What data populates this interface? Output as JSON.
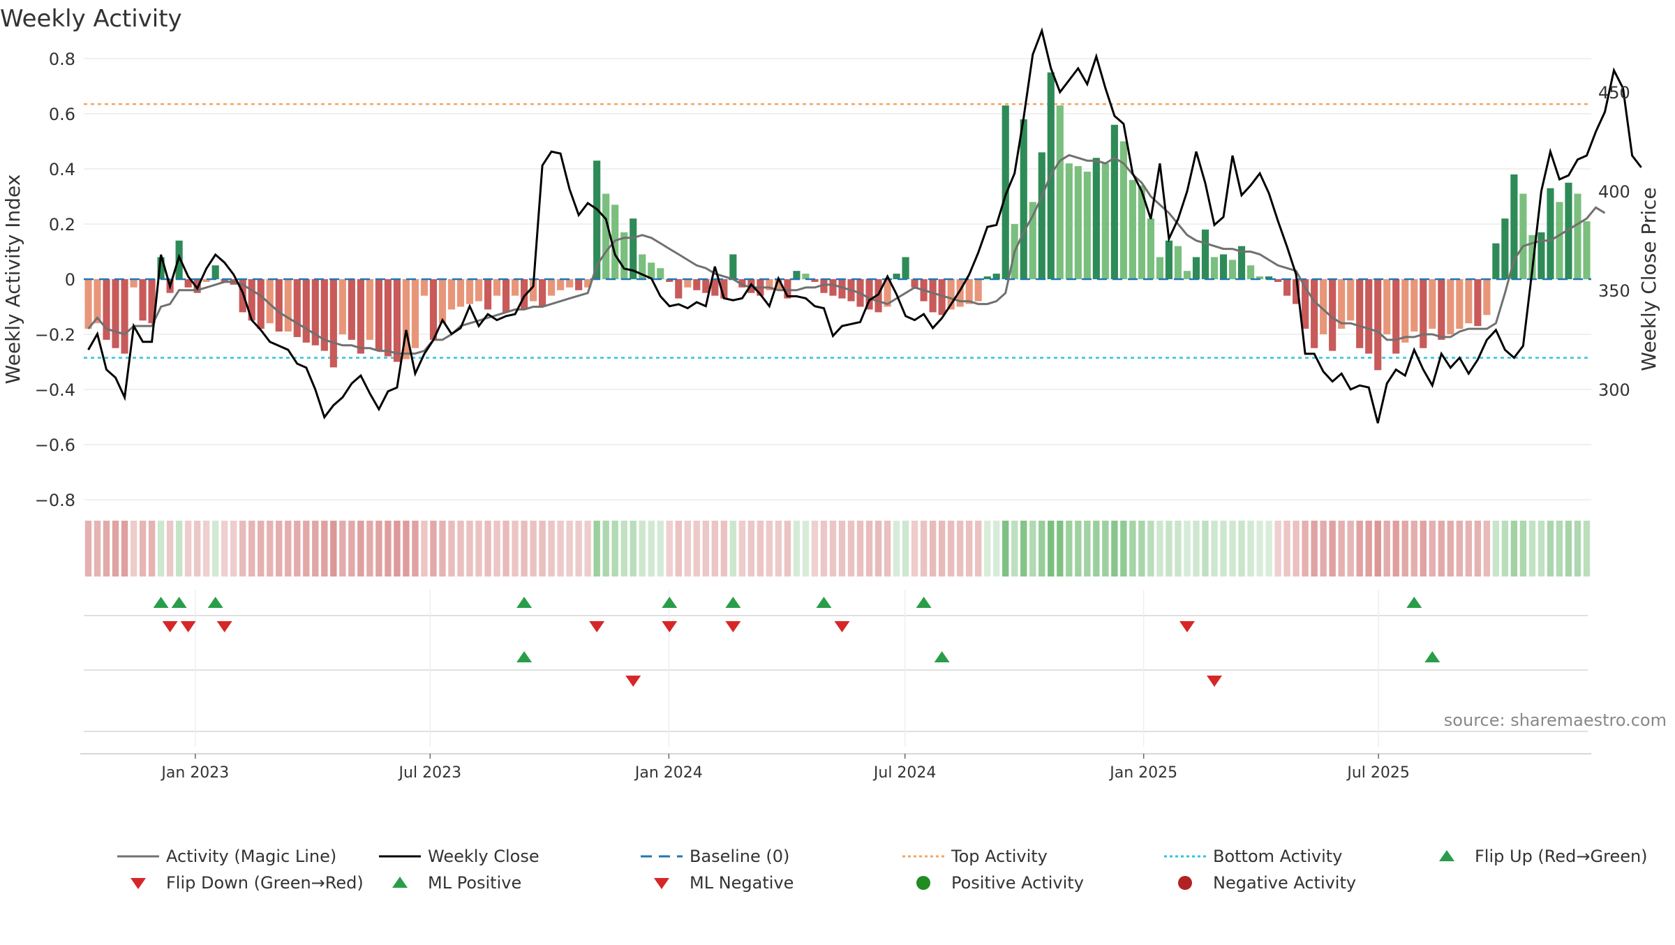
{
  "chart_data": {
    "type": "bar",
    "title": "Weekly Activity",
    "ylabel": "Weekly Activity Index",
    "y2label": "Weekly Close Price",
    "ylim": [
      -0.85,
      0.82
    ],
    "y2lim": [
      268,
      486
    ],
    "yticks": [
      0.8,
      0.6,
      0.4,
      0.2,
      0,
      -0.2,
      -0.4,
      -0.6,
      -0.8
    ],
    "ytick_labels": [
      "0.8",
      "0.6",
      "0.4",
      "0.2",
      "0",
      "−0.2",
      "−0.4",
      "−0.6",
      "−0.8"
    ],
    "y2ticks": [
      300,
      350,
      400,
      450
    ],
    "y2tick_labels": [
      "300",
      "350",
      "400",
      "450"
    ],
    "start_date": "2022-10-07",
    "x_dates": [
      "2023-01-01",
      "2023-07-01",
      "2024-01-01",
      "2024-07-01",
      "2025-01-01",
      "2025-07-01"
    ],
    "xtick_labels": [
      "Jan 2023",
      "Jul 2023",
      "Jan 2024",
      "Jul 2024",
      "Jan 2025",
      "Jul 2025"
    ],
    "top_activity": 0.635,
    "bottom_activity": -0.285,
    "baseline": 0,
    "grid": true,
    "source": "source: sharemaestro.com",
    "activity": [
      -0.18,
      -0.16,
      -0.22,
      -0.25,
      -0.27,
      -0.03,
      -0.15,
      -0.16,
      0.08,
      -0.05,
      0.14,
      -0.03,
      -0.05,
      -0.01,
      0.05,
      -0.01,
      -0.02,
      -0.12,
      -0.15,
      -0.18,
      -0.16,
      -0.19,
      -0.19,
      -0.21,
      -0.23,
      -0.24,
      -0.26,
      -0.32,
      -0.2,
      -0.22,
      -0.27,
      -0.22,
      -0.26,
      -0.28,
      -0.3,
      -0.29,
      -0.25,
      -0.06,
      -0.22,
      -0.16,
      -0.11,
      -0.1,
      -0.09,
      -0.08,
      -0.11,
      -0.06,
      -0.12,
      -0.06,
      -0.11,
      -0.08,
      -0.1,
      -0.06,
      -0.04,
      -0.03,
      -0.04,
      -0.03,
      0.43,
      0.31,
      0.27,
      0.17,
      0.22,
      0.09,
      0.06,
      0.04,
      -0.01,
      -0.07,
      -0.03,
      -0.04,
      -0.05,
      -0.06,
      -0.07,
      0.09,
      -0.03,
      -0.05,
      -0.06,
      -0.04,
      -0.04,
      -0.07,
      0.03,
      0.02,
      -0.01,
      -0.05,
      -0.06,
      -0.07,
      -0.08,
      -0.1,
      -0.11,
      -0.12,
      -0.1,
      0.02,
      0.08,
      -0.03,
      -0.08,
      -0.12,
      -0.13,
      -0.11,
      -0.1,
      -0.09,
      -0.08,
      0.01,
      0.02,
      0.63,
      0.2,
      0.58,
      0.28,
      0.46,
      0.75,
      0.63,
      0.42,
      0.41,
      0.39,
      0.44,
      0.42,
      0.56,
      0.5,
      0.36,
      0.34,
      0.22,
      0.08,
      0.14,
      0.12,
      0.03,
      0.08,
      0.18,
      0.08,
      0.09,
      0.07,
      0.12,
      0.05,
      0.01,
      0.01,
      -0.01,
      -0.06,
      -0.09,
      -0.18,
      -0.25,
      -0.2,
      -0.26,
      -0.18,
      -0.15,
      -0.25,
      -0.27,
      -0.33,
      -0.2,
      -0.27,
      -0.23,
      -0.19,
      -0.25,
      -0.18,
      -0.22,
      -0.2,
      -0.18,
      -0.16,
      -0.17,
      -0.13,
      0.13,
      0.22,
      0.38,
      0.31,
      0.16,
      0.17,
      0.33,
      0.28,
      0.35,
      0.31,
      0.21
    ],
    "magic_line": [
      -0.18,
      -0.14,
      -0.18,
      -0.19,
      -0.2,
      -0.17,
      -0.17,
      -0.17,
      -0.1,
      -0.09,
      -0.04,
      -0.04,
      -0.04,
      -0.03,
      -0.02,
      -0.01,
      -0.01,
      -0.02,
      -0.04,
      -0.06,
      -0.09,
      -0.12,
      -0.14,
      -0.16,
      -0.18,
      -0.2,
      -0.22,
      -0.23,
      -0.24,
      -0.24,
      -0.25,
      -0.25,
      -0.26,
      -0.26,
      -0.27,
      -0.27,
      -0.27,
      -0.26,
      -0.22,
      -0.22,
      -0.2,
      -0.17,
      -0.16,
      -0.15,
      -0.14,
      -0.13,
      -0.12,
      -0.11,
      -0.11,
      -0.1,
      -0.1,
      -0.09,
      -0.08,
      -0.07,
      -0.06,
      -0.05,
      0.05,
      0.1,
      0.14,
      0.15,
      0.15,
      0.16,
      0.15,
      0.13,
      0.11,
      0.09,
      0.07,
      0.05,
      0.04,
      0.02,
      0.01,
      0.0,
      -0.02,
      -0.03,
      -0.03,
      -0.03,
      -0.04,
      -0.04,
      -0.04,
      -0.03,
      -0.03,
      -0.02,
      -0.02,
      -0.03,
      -0.04,
      -0.05,
      -0.07,
      -0.08,
      -0.09,
      -0.07,
      -0.05,
      -0.03,
      -0.04,
      -0.05,
      -0.06,
      -0.07,
      -0.08,
      -0.08,
      -0.09,
      -0.09,
      -0.08,
      -0.05,
      0.1,
      0.17,
      0.23,
      0.3,
      0.38,
      0.43,
      0.45,
      0.44,
      0.43,
      0.43,
      0.42,
      0.44,
      0.42,
      0.38,
      0.35,
      0.3,
      0.27,
      0.24,
      0.2,
      0.16,
      0.14,
      0.13,
      0.12,
      0.11,
      0.11,
      0.1,
      0.1,
      0.09,
      0.07,
      0.05,
      0.04,
      0.03,
      -0.03,
      -0.08,
      -0.11,
      -0.14,
      -0.16,
      -0.16,
      -0.17,
      -0.18,
      -0.19,
      -0.22,
      -0.22,
      -0.21,
      -0.21,
      -0.2,
      -0.2,
      -0.21,
      -0.21,
      -0.19,
      -0.18,
      -0.18,
      -0.18,
      -0.16,
      -0.05,
      0.07,
      0.12,
      0.13,
      0.14,
      0.14,
      0.16,
      0.18,
      0.2,
      0.22,
      0.26,
      0.24
    ],
    "weekly_close": [
      320,
      328,
      310,
      306,
      296,
      332,
      324,
      324,
      368,
      352,
      367,
      357,
      351,
      361,
      368,
      364,
      358,
      349,
      335,
      330,
      324,
      322,
      320,
      313,
      311,
      300,
      286,
      292,
      296,
      303,
      307,
      298,
      290,
      299,
      301,
      330,
      308,
      318,
      325,
      335,
      328,
      331,
      342,
      332,
      338,
      335,
      337,
      338,
      347,
      352,
      413,
      420,
      419,
      401,
      388,
      394,
      391,
      386,
      368,
      361,
      360,
      358,
      356,
      347,
      342,
      343,
      341,
      344,
      342,
      362,
      346,
      345,
      346,
      353,
      348,
      342,
      356,
      347,
      347,
      346,
      342,
      341,
      327,
      332,
      333,
      334,
      345,
      348,
      357,
      348,
      337,
      335,
      338,
      331,
      336,
      343,
      350,
      358,
      369,
      382,
      383,
      398,
      409,
      437,
      469,
      481,
      462,
      450,
      456,
      462,
      454,
      468,
      452,
      438,
      434,
      409,
      400,
      386,
      414,
      376,
      386,
      400,
      420,
      404,
      383,
      387,
      418,
      398,
      403,
      409,
      399,
      385,
      372,
      358,
      318,
      318,
      309,
      304,
      308,
      300,
      302,
      301,
      283,
      303,
      310,
      307,
      320,
      310,
      302,
      318,
      311,
      316,
      308,
      315,
      325,
      330,
      320,
      316,
      322,
      360,
      400,
      420,
      406,
      408,
      416,
      418,
      430,
      440,
      461,
      452,
      418,
      412
    ],
    "flip_up": [
      8,
      10,
      14,
      48,
      64,
      71,
      81,
      92,
      146
    ],
    "flip_down": [
      9,
      11,
      15,
      56,
      64,
      71,
      83,
      121
    ],
    "ml_positive": [
      48,
      94,
      148
    ],
    "ml_negative": [
      60,
      124
    ],
    "legend": {
      "activity_magic_line": "Activity (Magic Line)",
      "weekly_close": "Weekly Close",
      "baseline": "Baseline (0)",
      "top_activity": "Top Activity",
      "bottom_activity": "Bottom Activity",
      "flip_up": "Flip Up (Red→Green)",
      "flip_down": "Flip Down (Green→Red)",
      "ml_positive": "ML Positive",
      "ml_negative": "ML Negative",
      "positive_activity": "Positive Activity",
      "negative_activity": "Negative Activity"
    },
    "colors": {
      "pos_dark": "#2e8b57",
      "pos_light": "#7bbf7e",
      "neg_dark": "#c85a5a",
      "neg_light": "#e8967a",
      "magic_line": "#707070",
      "close": "#000000",
      "baseline": "#1f77b4",
      "top": "#f4a460",
      "bottom": "#2ec4e0",
      "flip_up": "#2a9d4a",
      "flip_down": "#d62728",
      "pos_dot": "#228b22",
      "neg_dot": "#b22222"
    }
  }
}
